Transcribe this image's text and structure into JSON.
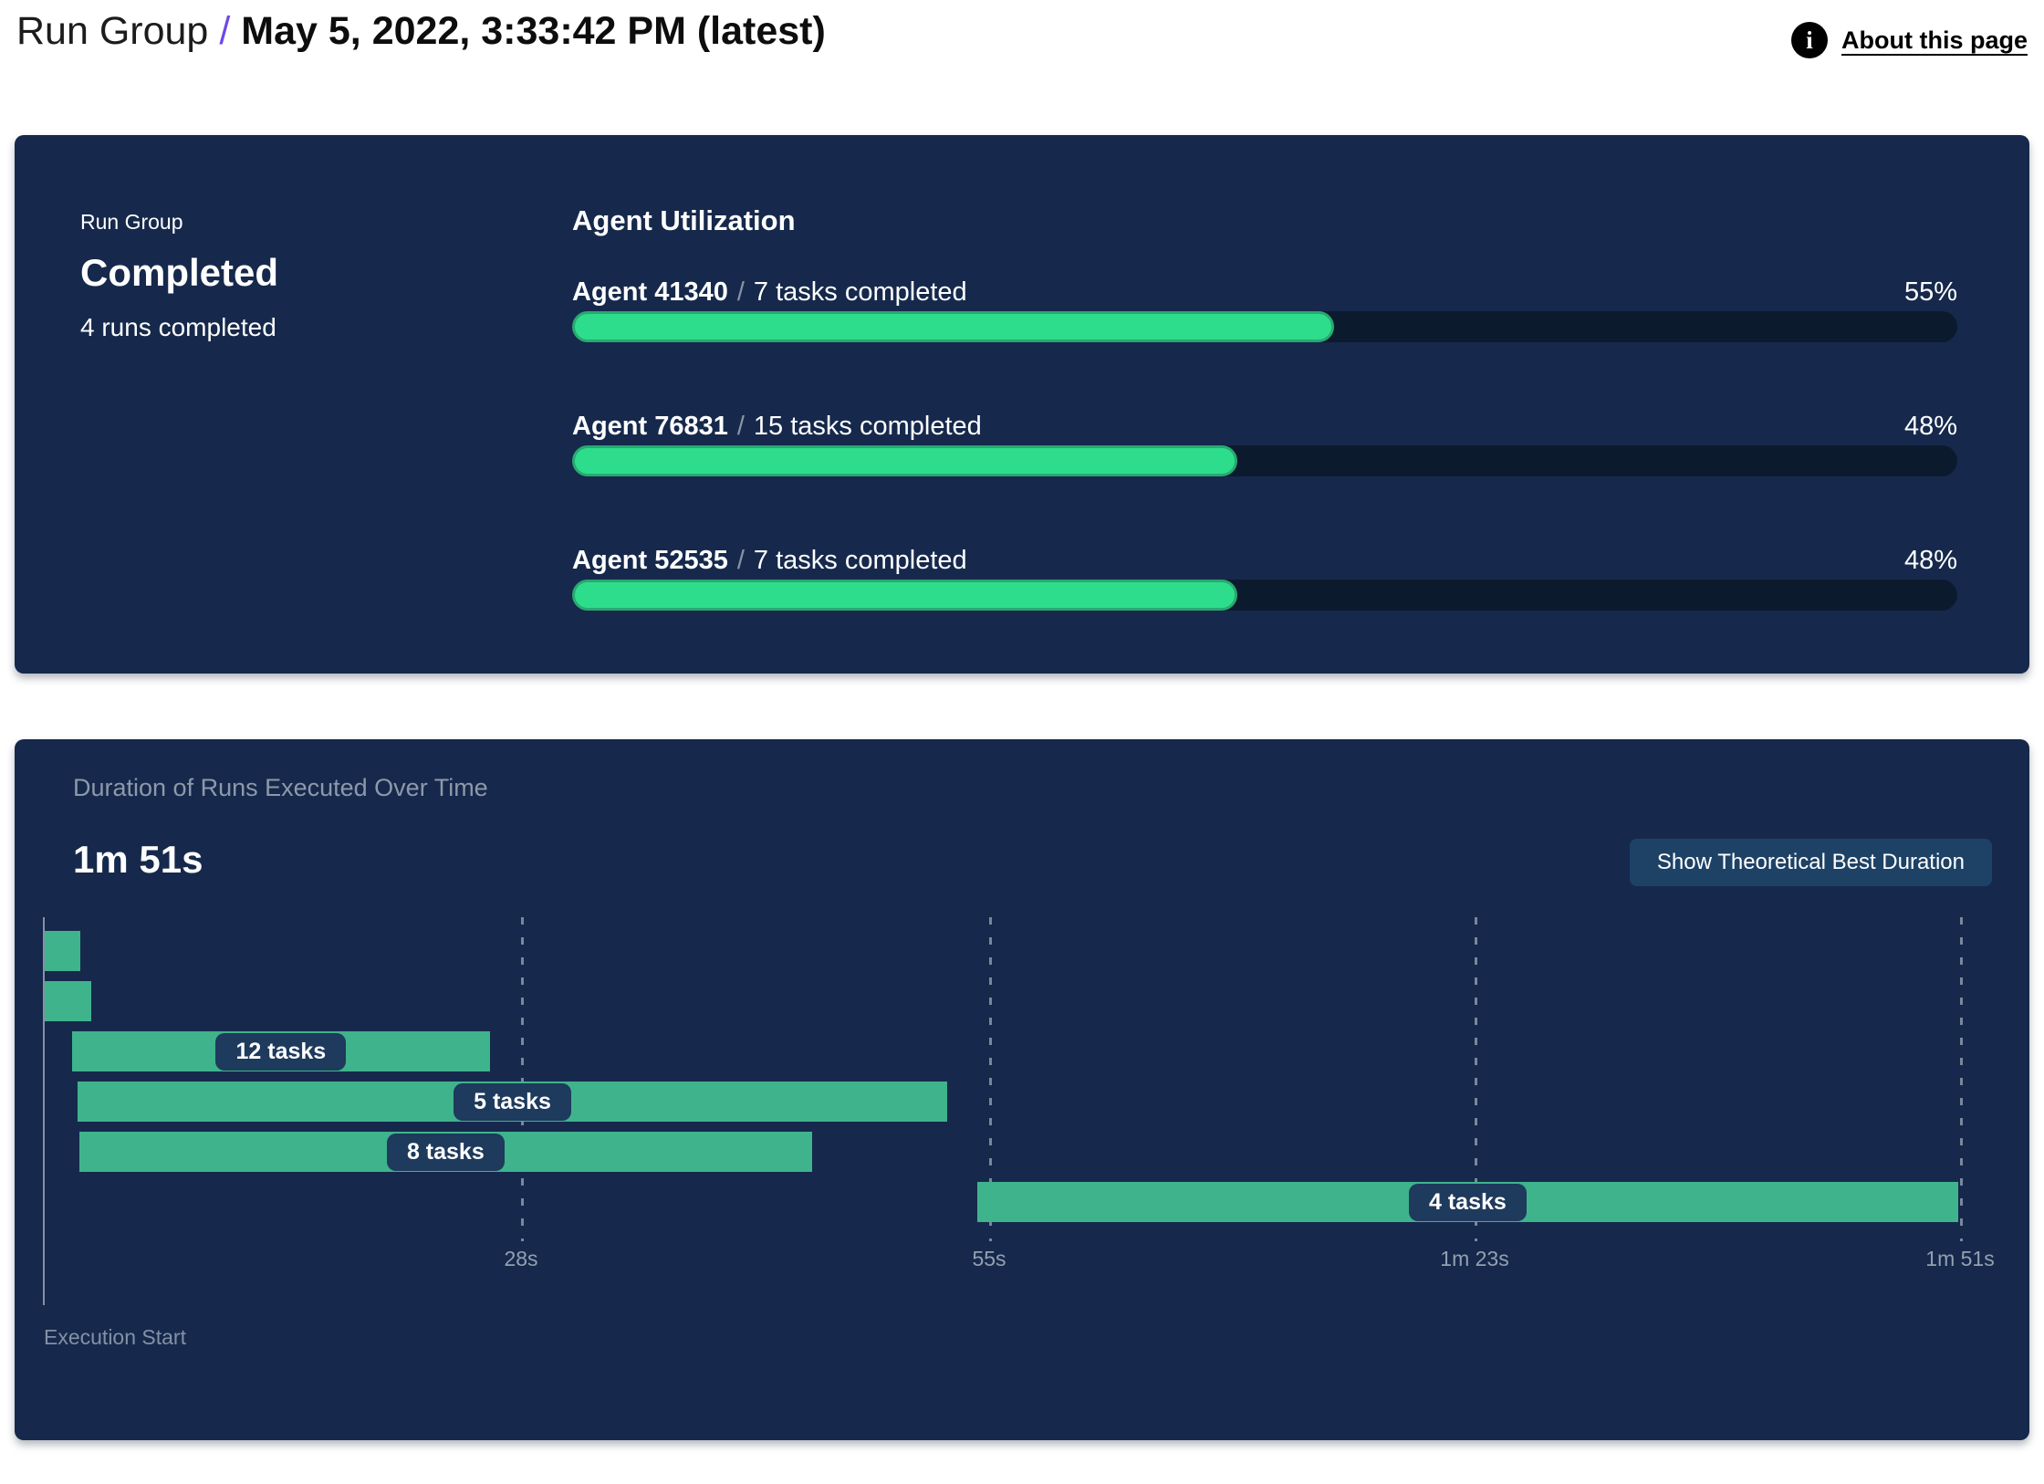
{
  "header": {
    "breadcrumb": "Run Group",
    "separator": "/",
    "title": "May 5, 2022, 3:33:42 PM (latest)",
    "about_link": "About this page",
    "info_glyph": "i"
  },
  "status_panel": {
    "label": "Run Group",
    "status": "Completed",
    "runs_completed": "4 runs completed"
  },
  "agent_utilization": {
    "title": "Agent Utilization",
    "separator": "/",
    "agents": [
      {
        "name": "Agent 41340",
        "tasks": "7 tasks completed",
        "percent": 55,
        "percent_label": "55%"
      },
      {
        "name": "Agent 76831",
        "tasks": "15 tasks completed",
        "percent": 48,
        "percent_label": "48%"
      },
      {
        "name": "Agent 52535",
        "tasks": "7 tasks completed",
        "percent": 48,
        "percent_label": "48%"
      }
    ]
  },
  "duration_panel": {
    "title": "Duration of Runs Executed Over Time",
    "total_duration": "1m 51s",
    "button_label": "Show Theoretical Best Duration",
    "execution_start_label": "Execution Start"
  },
  "chart_data": {
    "type": "gantt",
    "title": "Duration of Runs Executed Over Time",
    "total_duration_label": "1m 51s",
    "x_unit": "seconds",
    "xlim": [
      0,
      113
    ],
    "x_ticks": [
      {
        "t": 28,
        "label": "28s"
      },
      {
        "t": 55,
        "label": "55s"
      },
      {
        "t": 83,
        "label": "1m 23s"
      },
      {
        "t": 111,
        "label": "1m 51s"
      }
    ],
    "rows": [
      {
        "label": "",
        "start_s": 0.5,
        "end_s": 2.6
      },
      {
        "label": "",
        "start_s": 0.5,
        "end_s": 3.2
      },
      {
        "label": "12 tasks",
        "start_s": 2.1,
        "end_s": 26.2
      },
      {
        "label": "5 tasks",
        "start_s": 2.4,
        "end_s": 52.6
      },
      {
        "label": "8 tasks",
        "start_s": 2.5,
        "end_s": 44.8
      },
      {
        "label": "4 tasks",
        "start_s": 54.3,
        "end_s": 110.9
      }
    ]
  },
  "colors": {
    "panel_bg": "#16294c",
    "progress_track": "#0c1a2e",
    "progress_fill": "#2edd8b",
    "progress_fill_border": "#28a971",
    "gantt_bar": "#3fb38c",
    "task_pill_bg": "#1e3a5c",
    "button_bg": "#1d4266",
    "muted_text": "#8d99ab",
    "accent_purple": "#7048e8"
  }
}
